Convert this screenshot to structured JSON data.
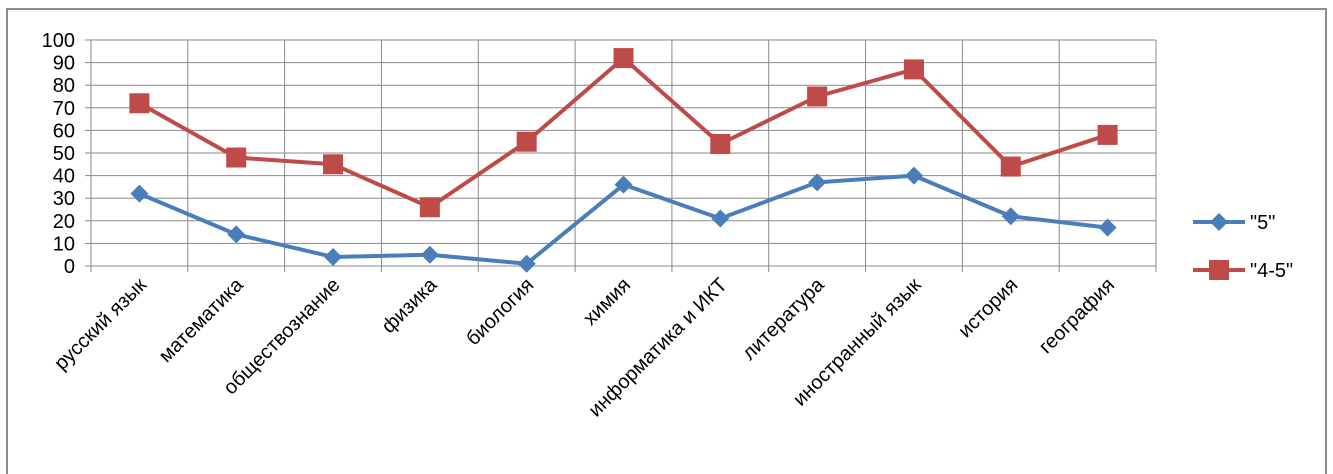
{
  "chart_data": {
    "type": "line",
    "title": "",
    "xlabel": "",
    "ylabel": "",
    "ylim": [
      0,
      100
    ],
    "yticks": [
      "0",
      "10",
      "20",
      "30",
      "40",
      "50",
      "60",
      "70",
      "80",
      "90",
      "100"
    ],
    "grid": true,
    "legend_position": "right",
    "categories": [
      "русский язык",
      "математика",
      "обществознание",
      "физика",
      "биология",
      "химия",
      "информатика и ИКТ",
      "литература",
      "иностранный язык",
      "история",
      "география"
    ],
    "series": [
      {
        "name": "\"5\"",
        "color": "#4a7ebb",
        "marker": "diamond",
        "values": [
          32,
          14,
          4,
          5,
          1,
          36,
          21,
          37,
          40,
          22,
          17
        ]
      },
      {
        "name": "\"4-5\"",
        "color": "#be4b48",
        "marker": "square",
        "values": [
          72,
          48,
          45,
          26,
          55,
          92,
          54,
          75,
          87,
          44,
          58
        ]
      }
    ]
  }
}
